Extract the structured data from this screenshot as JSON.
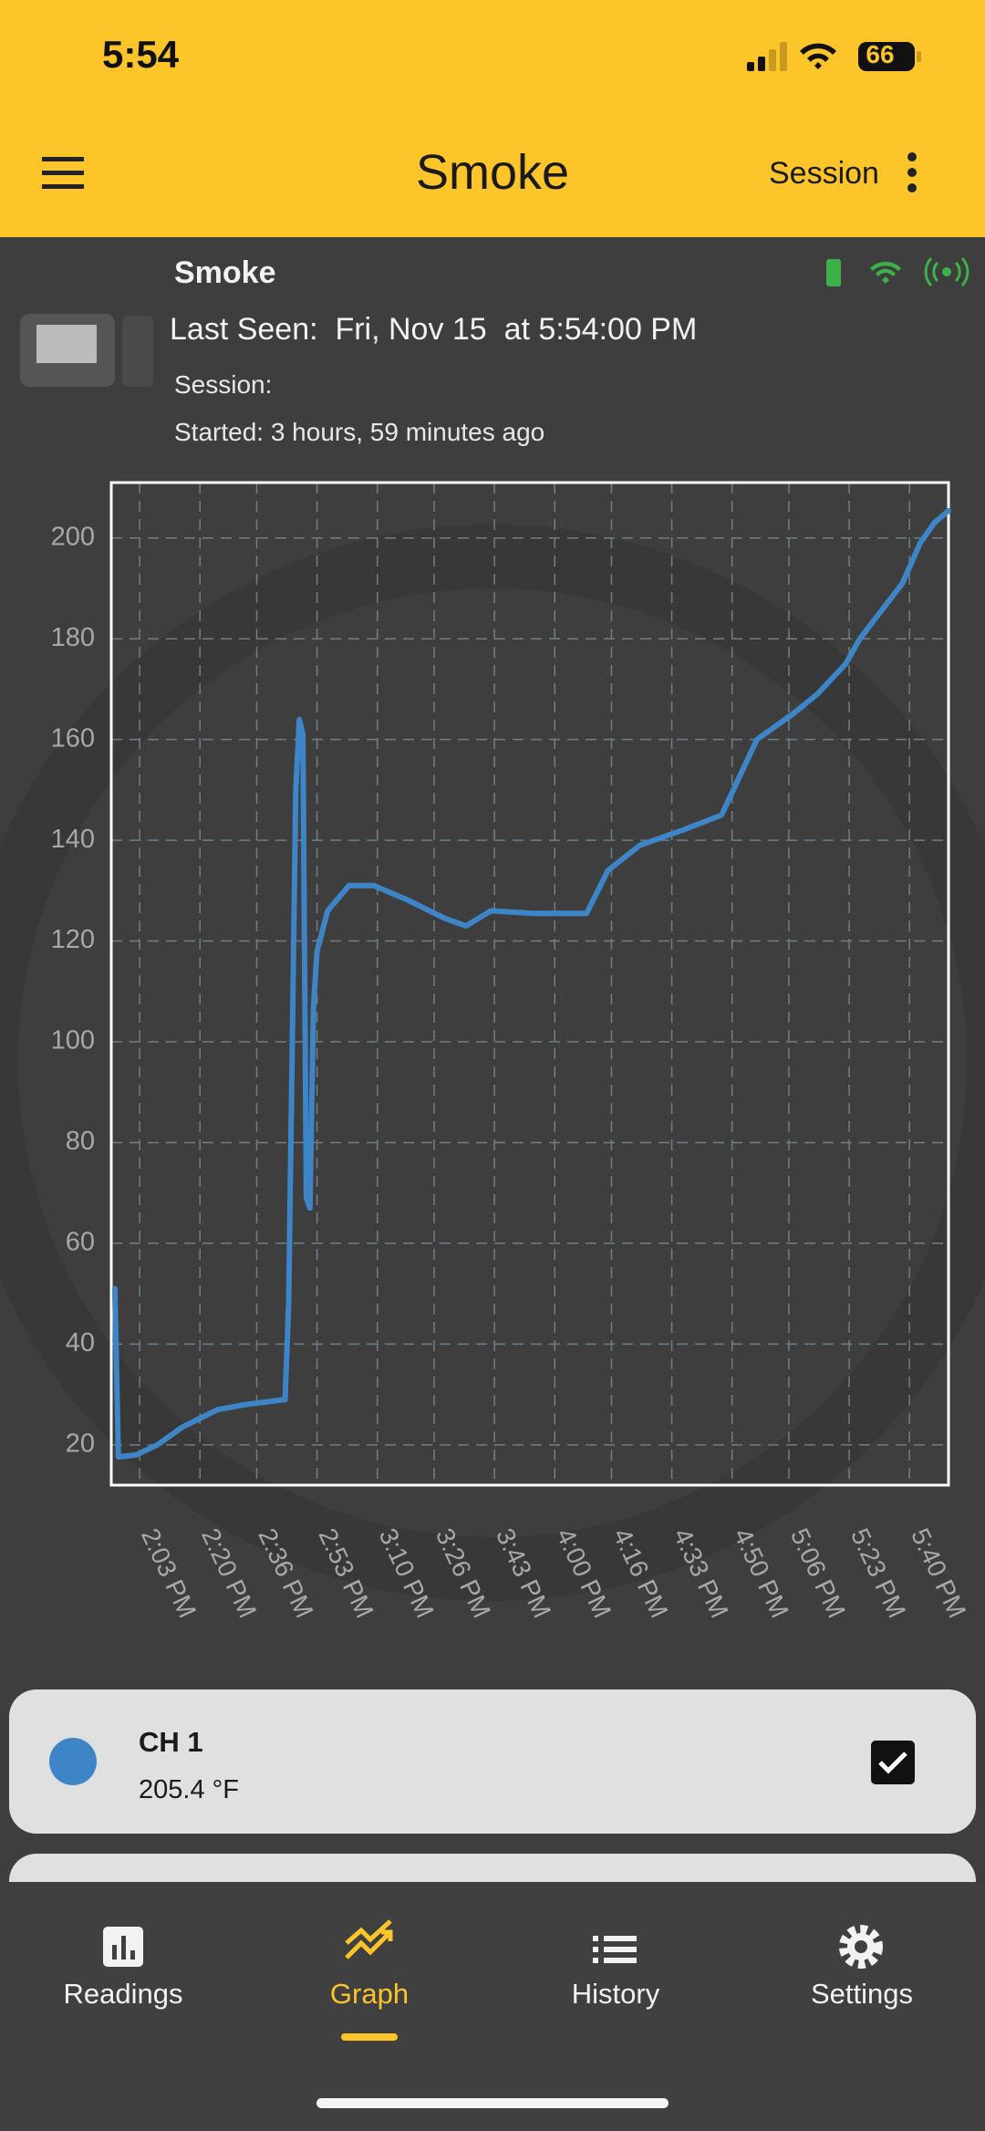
{
  "status_bar": {
    "time": "5:54",
    "battery": "66"
  },
  "app_bar": {
    "title": "Smoke",
    "action": "Session"
  },
  "device": {
    "name": "Smoke",
    "last_seen": "Last Seen:  Fri, Nov 15  at 5:54:00 PM",
    "session": "Session:",
    "started": "Started: 3 hours, 59 minutes ago"
  },
  "chart_data": {
    "type": "line",
    "x": [
      "1:56 PM",
      "1:57 PM",
      "2:02 PM",
      "2:08 PM",
      "2:15 PM",
      "2:25 PM",
      "2:33 PM",
      "2:44 PM",
      "2:45 PM",
      "2:47 PM",
      "2:48 PM",
      "2:49 PM",
      "2:50 PM",
      "2:51 PM",
      "2:52 PM",
      "2:53 PM",
      "2:56 PM",
      "3:02 PM",
      "3:09 PM",
      "3:19 PM",
      "3:29 PM",
      "3:35 PM",
      "3:42 PM",
      "3:54 PM",
      "4:09 PM",
      "4:15 PM",
      "4:24 PM",
      "4:36 PM",
      "4:47 PM",
      "4:53 PM",
      "4:57 PM",
      "5:07 PM",
      "5:14 PM",
      "5:22 PM",
      "5:26 PM",
      "5:38 PM",
      "5:43 PM",
      "5:47 PM",
      "5:51 PM"
    ],
    "series": [
      {
        "color": "#3d85c6",
        "values": [
          51,
          17.6,
          18,
          20,
          23.5,
          27,
          28,
          29,
          48,
          150,
          164,
          161,
          69,
          67,
          107,
          118,
          126,
          131,
          131,
          128,
          124.5,
          123,
          126,
          125.5,
          125.5,
          134,
          139,
          142,
          145,
          154,
          160,
          165,
          169,
          175,
          180,
          191,
          199,
          203,
          205.4
        ]
      }
    ],
    "xlim": [
      "1:55 PM",
      "5:51 PM"
    ],
    "xticks": [
      "2:03 PM",
      "2:20 PM",
      "2:36 PM",
      "2:53 PM",
      "3:10 PM",
      "3:26 PM",
      "3:43 PM",
      "4:00 PM",
      "4:16 PM",
      "4:33 PM",
      "4:50 PM",
      "5:06 PM",
      "5:23 PM",
      "5:40 PM"
    ],
    "ylim": [
      12,
      211
    ],
    "yticks": [
      20,
      40,
      60,
      80,
      100,
      120,
      140,
      160,
      180,
      200
    ],
    "grid": true
  },
  "channels": [
    {
      "name": "CH 1",
      "reading": "205.4 °F",
      "color": "#3d85c6",
      "checked": true
    }
  ],
  "nav": {
    "items": [
      "Readings",
      "Graph",
      "History",
      "Settings"
    ],
    "active": 1
  }
}
